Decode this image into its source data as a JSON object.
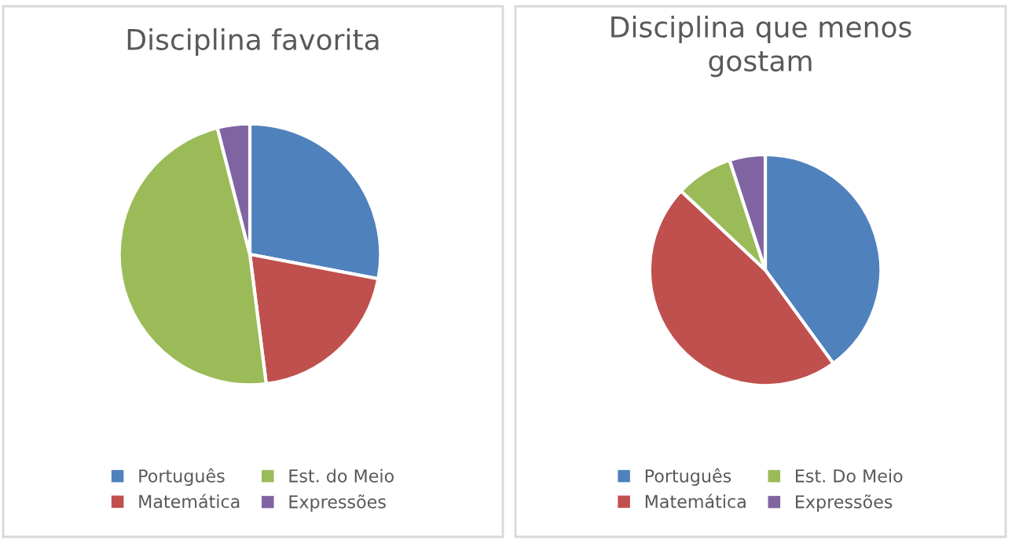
{
  "chart_data": [
    {
      "type": "pie",
      "title": "Disciplina favorita",
      "categories": [
        "Português",
        "Matemática",
        "Est. do Meio",
        "Expressões"
      ],
      "values": [
        28,
        20,
        48,
        4
      ],
      "colors": [
        "#4f81bd",
        "#c0504d",
        "#9bbb59",
        "#8064a2"
      ],
      "legend": "bottom"
    },
    {
      "type": "pie",
      "title": "Disciplina que menos gostam",
      "categories": [
        "Português",
        "Matemática",
        "Est. Do Meio",
        "Expressões"
      ],
      "values": [
        40,
        47,
        8,
        5
      ],
      "colors": [
        "#4f81bd",
        "#c0504d",
        "#9bbb59",
        "#8064a2"
      ],
      "legend": "bottom"
    }
  ]
}
